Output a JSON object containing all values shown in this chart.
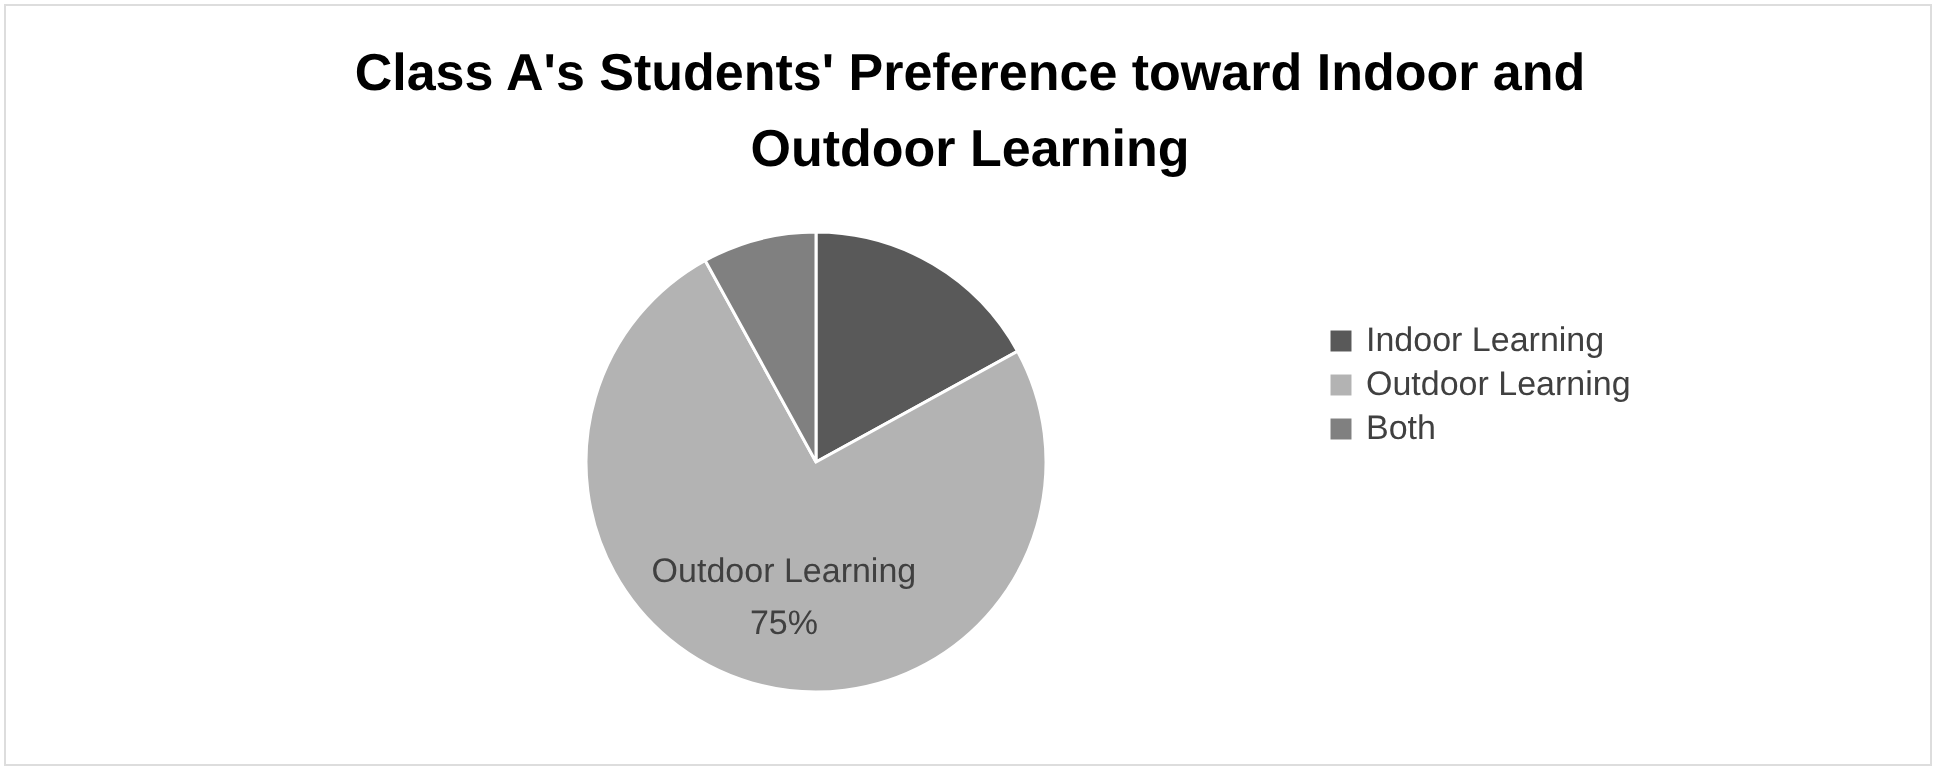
{
  "chart_data": {
    "type": "pie",
    "title": "Class A's Students' Preference  toward Indoor and Outdoor Learning",
    "categories": [
      "Indoor Learning",
      "Outdoor Learning",
      "Both"
    ],
    "values": [
      17,
      75,
      8
    ],
    "colors": [
      "#595959",
      "#b3b3b3",
      "#808080"
    ],
    "value_labels": [
      null,
      "75%",
      null
    ],
    "legend": "right"
  }
}
